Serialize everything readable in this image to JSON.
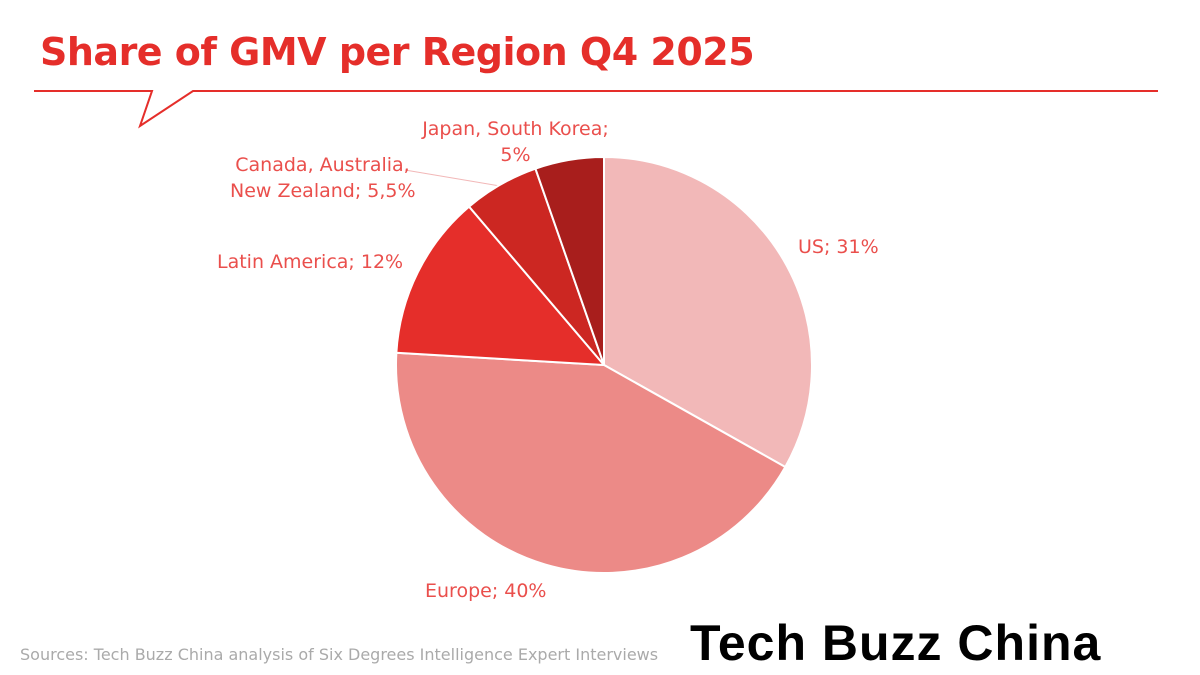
{
  "chart_data": {
    "type": "pie",
    "title": "Share of GMV per Region Q4 2025",
    "start_angle": "top",
    "direction": "clockwise",
    "slices": [
      {
        "label": "US",
        "value": 31,
        "display": "US; 31%",
        "color": "#f2b8b8"
      },
      {
        "label": "Europe",
        "value": 40,
        "display": "Europe; 40%",
        "color": "#ec8a87"
      },
      {
        "label": "Latin America",
        "value": 12,
        "display": "Latin America; 12%",
        "color": "#e52e2a"
      },
      {
        "label": "Canada, Australia, New Zealand",
        "value": 5.5,
        "display_line1": "Canada, Australia,",
        "display_line2": "New Zealand; 5,5%",
        "color": "#cc2722"
      },
      {
        "label": "Japan, South Korea",
        "value": 5,
        "display_line1": "Japan, South Korea;",
        "display_line2": "5%",
        "color": "#a81e1c"
      }
    ]
  },
  "source": "Sources: Tech Buzz China analysis of Six Degrees Intelligence Expert Interviews",
  "logo": "Tech Buzz China",
  "accent_color": "#e52e2a"
}
